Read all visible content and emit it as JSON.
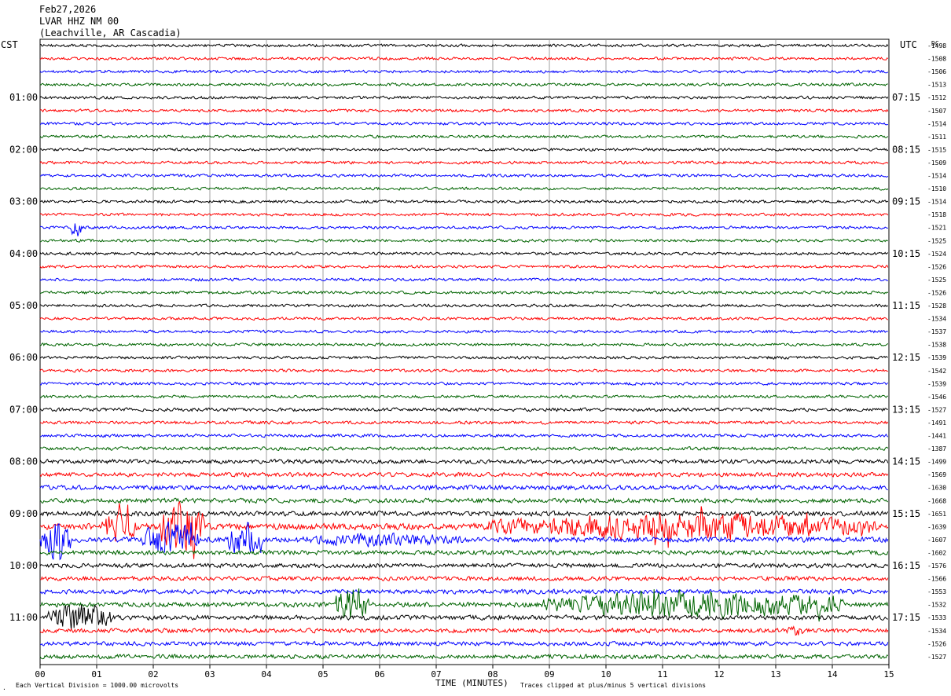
{
  "header": {
    "date": "Feb27,2026",
    "station": "LVAR HHZ NM 00",
    "location": "(Leachville, AR Cascadia)"
  },
  "left_timezone": "CST",
  "right_timezone": "UTC",
  "dc_header": "DC",
  "footer": {
    "scale_note": "Each Vertical Division = 1000.00 microvolts",
    "xlabel": "TIME (MINUTES)",
    "clip_note": "Traces clipped at plus/minus 5 vertical divisions",
    "corner_mark": "."
  },
  "chart_data": {
    "type": "line",
    "xlabel": "TIME (MINUTES)",
    "xlim": [
      0,
      15
    ],
    "x_ticks": [
      "00",
      "01",
      "02",
      "03",
      "04",
      "05",
      "06",
      "07",
      "08",
      "09",
      "10",
      "11",
      "12",
      "13",
      "14",
      "15"
    ],
    "grid": "vertical lines every minute",
    "line_count": 48,
    "trace_colors": [
      "#000000",
      "#ff0000",
      "#0000ff",
      "#006400"
    ],
    "left_hour_labels": [
      "01:00",
      "02:00",
      "03:00",
      "04:00",
      "05:00",
      "06:00",
      "07:00",
      "08:00",
      "09:00",
      "10:00",
      "11:00"
    ],
    "right_hour_labels": [
      "07:15",
      "08:15",
      "09:15",
      "10:15",
      "11:15",
      "12:15",
      "13:15",
      "14:15",
      "15:15",
      "16:15",
      "17:15"
    ],
    "dc_offsets": [
      "-1498",
      "-1508",
      "-1506",
      "-1513",
      "-1512",
      "-1507",
      "-1514",
      "-1511",
      "-1515",
      "-1509",
      "-1514",
      "-1510",
      "-1514",
      "-1518",
      "-1521",
      "-1525",
      "-1524",
      "-1526",
      "-1525",
      "-1526",
      "-1528",
      "-1534",
      "-1537",
      "-1538",
      "-1539",
      "-1542",
      "-1539",
      "-1546",
      "-1527",
      "-1491",
      "-1441",
      "-1387",
      "-1499",
      "-1569",
      "-1630",
      "-1668",
      "-1651",
      "-1639",
      "-1607",
      "-1602",
      "-1576",
      "-1566",
      "-1553",
      "-1532",
      "-1533",
      "-1534",
      "-1526",
      "-1527"
    ],
    "line_activity": [
      1.0,
      1.0,
      1.0,
      1.0,
      1.0,
      1.0,
      1.0,
      1.0,
      1.0,
      1.0,
      1.0,
      1.0,
      1.0,
      1.0,
      1.0,
      1.0,
      1.0,
      1.0,
      1.0,
      1.0,
      1.0,
      1.0,
      1.0,
      1.0,
      1.0,
      1.0,
      1.0,
      1.0,
      1.2,
      1.1,
      1.1,
      1.2,
      1.5,
      1.5,
      1.6,
      1.6,
      1.7,
      2.2,
      1.8,
      1.6,
      1.5,
      1.5,
      1.6,
      1.7,
      1.6,
      1.5,
      1.5,
      1.5
    ],
    "events": [
      {
        "line": 14,
        "start_min": 0.55,
        "end_min": 0.75,
        "level": 4
      },
      {
        "line": 37,
        "start_min": 1.1,
        "end_min": 1.7,
        "level": 6
      },
      {
        "line": 37,
        "start_min": 2.1,
        "end_min": 2.9,
        "level": 10
      },
      {
        "line": 37,
        "start_min": 7.9,
        "end_min": 14.8,
        "level": 5
      },
      {
        "line": 38,
        "start_min": 0.0,
        "end_min": 0.55,
        "level": 7
      },
      {
        "line": 38,
        "start_min": 1.8,
        "end_min": 2.8,
        "level": 6
      },
      {
        "line": 38,
        "start_min": 3.3,
        "end_min": 3.9,
        "level": 6
      },
      {
        "line": 38,
        "start_min": 4.5,
        "end_min": 7.5,
        "level": 2.5
      },
      {
        "line": 43,
        "start_min": 5.2,
        "end_min": 5.8,
        "level": 7
      },
      {
        "line": 43,
        "start_min": 8.9,
        "end_min": 14.2,
        "level": 5
      },
      {
        "line": 44,
        "start_min": 0.1,
        "end_min": 1.3,
        "level": 5
      },
      {
        "line": 45,
        "start_min": 13.2,
        "end_min": 13.5,
        "level": 2
      }
    ]
  }
}
